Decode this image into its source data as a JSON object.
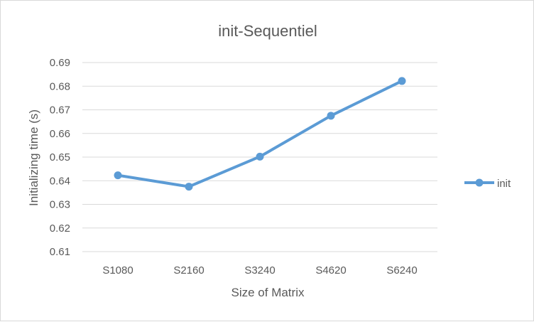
{
  "chart_data": {
    "type": "line",
    "title": "init-Sequentiel",
    "xlabel": "Size of Matrix",
    "ylabel": "Initializing time (s)",
    "categories": [
      "S1080",
      "S2160",
      "S3240",
      "S4620",
      "S6240"
    ],
    "series": [
      {
        "name": "init",
        "values": [
          0.6423,
          0.6375,
          0.6502,
          0.6675,
          0.6822
        ],
        "color": "#5b9bd5"
      }
    ],
    "ylim": [
      0.61,
      0.69
    ],
    "yticks": [
      "0.61",
      "0.62",
      "0.63",
      "0.64",
      "0.65",
      "0.66",
      "0.67",
      "0.68",
      "0.69"
    ],
    "grid": true,
    "legend_position": "right",
    "marker": "circle"
  }
}
